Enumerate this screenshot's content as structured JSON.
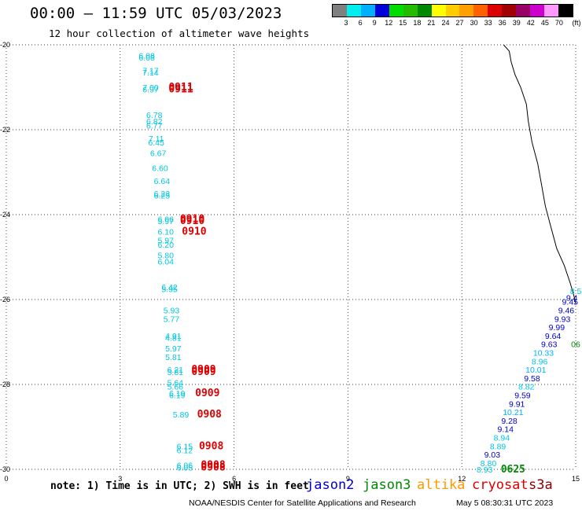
{
  "title": "00:00 – 11:59 UTC 05/03/2023",
  "subtitle": "12 hour collection of altimeter wave heights",
  "legend": {
    "unit": "(ft)",
    "labels": [
      "3",
      "6",
      "9",
      "12",
      "15",
      "18",
      "21",
      "24",
      "27",
      "30",
      "33",
      "36",
      "39",
      "42",
      "45",
      "70"
    ],
    "colors": [
      "#808080",
      "#00eeee",
      "#00b0ff",
      "#0000dd",
      "#00dd00",
      "#22bb00",
      "#008800",
      "#ffff00",
      "#ffcc00",
      "#ffa000",
      "#ff6000",
      "#dd0000",
      "#a00000",
      "#990066",
      "#cc00cc",
      "#ff99ff",
      "#000000"
    ]
  },
  "footer": {
    "note": "note: 1) Time is in UTC; 2) SWH is in feet",
    "satellites": [
      {
        "name": "jason2",
        "color": "#0000cc"
      },
      {
        "name": "jason3",
        "color": "#008800"
      },
      {
        "name": "altika",
        "color": "#ff9900"
      },
      {
        "name": "cryosat",
        "color": "#dd0000"
      },
      {
        "name": "s3a",
        "color": "#880000"
      }
    ],
    "credit": "NOAA/NESDIS Center for Satellite Applications and Research",
    "timestamp": "May  5 08:30:31 UTC 2023"
  },
  "map": {
    "xlim": [
      0,
      15
    ],
    "ylim": [
      -30,
      -20
    ],
    "x_ticks": [
      "0",
      "3",
      "6",
      "9",
      "12",
      "15"
    ],
    "y_ticks": [
      "-20",
      "-22",
      "-24",
      "-26",
      "-28",
      "-30"
    ],
    "coastline": [
      [
        13.1,
        -20.0
      ],
      [
        13.25,
        -20.15
      ],
      [
        13.3,
        -20.4
      ],
      [
        13.4,
        -20.7
      ],
      [
        13.55,
        -21.0
      ],
      [
        13.7,
        -21.4
      ],
      [
        13.75,
        -21.8
      ],
      [
        13.85,
        -22.3
      ],
      [
        14.0,
        -22.8
      ],
      [
        14.1,
        -23.3
      ],
      [
        14.2,
        -23.8
      ],
      [
        14.35,
        -24.3
      ],
      [
        14.5,
        -24.8
      ],
      [
        14.7,
        -25.2
      ],
      [
        14.85,
        -25.6
      ],
      [
        14.95,
        -25.9
      ],
      [
        15.0,
        -26.1
      ]
    ],
    "points": [
      {
        "lon": 3.7,
        "lat": -20.25,
        "text": "6.08",
        "color": "#00c8e0"
      },
      {
        "lon": 3.7,
        "lat": -20.3,
        "text": "6.08",
        "color": "#00c8e0"
      },
      {
        "lon": 3.8,
        "lat": -20.6,
        "text": "7.17",
        "color": "#00c8e0"
      },
      {
        "lon": 3.8,
        "lat": -20.65,
        "text": "7.14",
        "color": "#00c8e0"
      },
      {
        "lon": 3.8,
        "lat": -21.0,
        "text": "7.00",
        "color": "#00c8e0"
      },
      {
        "lon": 3.8,
        "lat": -21.05,
        "text": "6.97",
        "color": "#00c8e0"
      },
      {
        "lon": 4.6,
        "lat": -21.0,
        "text": "0911",
        "color": "#dd0000"
      },
      {
        "lon": 4.6,
        "lat": -21.05,
        "text": "0911",
        "color": "#dd0000"
      },
      {
        "lon": 3.9,
        "lat": -21.65,
        "text": "6.78",
        "color": "#00c8e0"
      },
      {
        "lon": 3.9,
        "lat": -21.8,
        "text": "6.82",
        "color": "#00c8e0"
      },
      {
        "lon": 3.9,
        "lat": -21.9,
        "text": "6.77",
        "color": "#00c8e0"
      },
      {
        "lon": 3.95,
        "lat": -22.2,
        "text": "7.11",
        "color": "#00c8e0"
      },
      {
        "lon": 3.95,
        "lat": -22.3,
        "text": "6.45",
        "color": "#00c8e0"
      },
      {
        "lon": 4.0,
        "lat": -22.55,
        "text": "6.67",
        "color": "#00c8e0"
      },
      {
        "lon": 4.05,
        "lat": -22.9,
        "text": "6.60",
        "color": "#00c8e0"
      },
      {
        "lon": 4.1,
        "lat": -23.2,
        "text": "6.64",
        "color": "#00c8e0"
      },
      {
        "lon": 4.1,
        "lat": -23.5,
        "text": "6.23",
        "color": "#00c8e0"
      },
      {
        "lon": 4.1,
        "lat": -23.55,
        "text": "6.25",
        "color": "#00c8e0"
      },
      {
        "lon": 4.2,
        "lat": -24.1,
        "text": "6.06",
        "color": "#00c8e0"
      },
      {
        "lon": 4.2,
        "lat": -24.15,
        "text": "5.97",
        "color": "#00c8e0"
      },
      {
        "lon": 4.9,
        "lat": -24.1,
        "text": "0910",
        "color": "#dd0000"
      },
      {
        "lon": 4.9,
        "lat": -24.15,
        "text": "0910",
        "color": "#dd0000"
      },
      {
        "lon": 4.2,
        "lat": -24.4,
        "text": "6.10",
        "color": "#00c8e0"
      },
      {
        "lon": 4.95,
        "lat": -24.4,
        "text": "0910",
        "color": "#dd0000"
      },
      {
        "lon": 4.2,
        "lat": -24.6,
        "text": "5.97",
        "color": "#00c8e0"
      },
      {
        "lon": 4.2,
        "lat": -24.7,
        "text": "6.20",
        "color": "#00c8e0"
      },
      {
        "lon": 4.2,
        "lat": -24.95,
        "text": "5.80",
        "color": "#00c8e0"
      },
      {
        "lon": 4.2,
        "lat": -25.1,
        "text": "6.04",
        "color": "#00c8e0"
      },
      {
        "lon": 4.3,
        "lat": -25.7,
        "text": "6.42",
        "color": "#00c8e0"
      },
      {
        "lon": 4.3,
        "lat": -25.75,
        "text": "5.95",
        "color": "#00c8e0"
      },
      {
        "lon": 4.35,
        "lat": -26.25,
        "text": "5.93",
        "color": "#00c8e0"
      },
      {
        "lon": 4.35,
        "lat": -26.45,
        "text": "5.77",
        "color": "#00c8e0"
      },
      {
        "lon": 4.4,
        "lat": -26.85,
        "text": "4.91",
        "color": "#00c8e0"
      },
      {
        "lon": 4.4,
        "lat": -26.9,
        "text": "4.81",
        "color": "#00c8e0"
      },
      {
        "lon": 4.4,
        "lat": -27.15,
        "text": "5.97",
        "color": "#00c8e0"
      },
      {
        "lon": 4.4,
        "lat": -27.35,
        "text": "5.81",
        "color": "#00c8e0"
      },
      {
        "lon": 4.45,
        "lat": -27.65,
        "text": "6.21",
        "color": "#00c8e0"
      },
      {
        "lon": 4.45,
        "lat": -27.7,
        "text": "5.81",
        "color": "#00c8e0"
      },
      {
        "lon": 5.2,
        "lat": -27.65,
        "text": "0909",
        "color": "#dd0000"
      },
      {
        "lon": 5.2,
        "lat": -27.7,
        "text": "0909",
        "color": "#dd0000"
      },
      {
        "lon": 4.45,
        "lat": -27.95,
        "text": "5.64",
        "color": "#00c8e0"
      },
      {
        "lon": 4.45,
        "lat": -28.05,
        "text": "5.66",
        "color": "#00c8e0"
      },
      {
        "lon": 4.5,
        "lat": -28.2,
        "text": "6.19",
        "color": "#00c8e0"
      },
      {
        "lon": 4.5,
        "lat": -28.25,
        "text": "6.19",
        "color": "#00c8e0"
      },
      {
        "lon": 5.3,
        "lat": -28.2,
        "text": "0909",
        "color": "#dd0000"
      },
      {
        "lon": 4.6,
        "lat": -28.7,
        "text": "5.89",
        "color": "#00c8e0"
      },
      {
        "lon": 5.35,
        "lat": -28.7,
        "text": "0908",
        "color": "#dd0000"
      },
      {
        "lon": 4.7,
        "lat": -29.45,
        "text": "6.15",
        "color": "#00c8e0"
      },
      {
        "lon": 4.7,
        "lat": -29.55,
        "text": "6.12",
        "color": "#00c8e0"
      },
      {
        "lon": 5.4,
        "lat": -29.45,
        "text": "0908",
        "color": "#dd0000"
      },
      {
        "lon": 4.7,
        "lat": -29.9,
        "text": "6.06",
        "color": "#00c8e0"
      },
      {
        "lon": 4.7,
        "lat": -29.95,
        "text": "6.05",
        "color": "#00c8e0"
      },
      {
        "lon": 5.45,
        "lat": -29.9,
        "text": "0908",
        "color": "#dd0000"
      },
      {
        "lon": 5.45,
        "lat": -29.95,
        "text": "0908",
        "color": "#dd0000"
      },
      {
        "lon": 15.0,
        "lat": -25.8,
        "text": "8.5",
        "color": "#00c8e0"
      },
      {
        "lon": 14.9,
        "lat": -25.95,
        "text": "9.4",
        "color": "#0000cc"
      },
      {
        "lon": 14.85,
        "lat": -26.05,
        "text": "9.45",
        "color": "#0000cc"
      },
      {
        "lon": 14.75,
        "lat": -26.25,
        "text": "9.46",
        "color": "#0000cc"
      },
      {
        "lon": 14.65,
        "lat": -26.45,
        "text": "9.93",
        "color": "#0000cc"
      },
      {
        "lon": 14.5,
        "lat": -26.65,
        "text": "9.99",
        "color": "#0000cc"
      },
      {
        "lon": 14.4,
        "lat": -26.85,
        "text": "9.64",
        "color": "#0000cc"
      },
      {
        "lon": 14.3,
        "lat": -27.05,
        "text": "9.63",
        "color": "#0000cc"
      },
      {
        "lon": 15.0,
        "lat": -27.05,
        "text": "06",
        "color": "#008800"
      },
      {
        "lon": 14.15,
        "lat": -27.25,
        "text": "10.33",
        "color": "#00b0ff"
      },
      {
        "lon": 14.05,
        "lat": -27.45,
        "text": "8.96",
        "color": "#00c8e0"
      },
      {
        "lon": 13.95,
        "lat": -27.65,
        "text": "10.01",
        "color": "#00b0ff"
      },
      {
        "lon": 13.85,
        "lat": -27.85,
        "text": "9.58",
        "color": "#0000cc"
      },
      {
        "lon": 13.7,
        "lat": -28.05,
        "text": "8.82",
        "color": "#00c8e0"
      },
      {
        "lon": 13.6,
        "lat": -28.25,
        "text": "9.59",
        "color": "#0000cc"
      },
      {
        "lon": 13.45,
        "lat": -28.45,
        "text": "9.91",
        "color": "#0000cc"
      },
      {
        "lon": 13.35,
        "lat": -28.65,
        "text": "10.21",
        "color": "#00b0ff"
      },
      {
        "lon": 13.25,
        "lat": -28.85,
        "text": "9.28",
        "color": "#0000cc"
      },
      {
        "lon": 13.15,
        "lat": -29.05,
        "text": "9.14",
        "color": "#0000cc"
      },
      {
        "lon": 13.05,
        "lat": -29.25,
        "text": "8.94",
        "color": "#00c8e0"
      },
      {
        "lon": 12.95,
        "lat": -29.45,
        "text": "8.89",
        "color": "#00c8e0"
      },
      {
        "lon": 12.8,
        "lat": -29.65,
        "text": "9.03",
        "color": "#0000cc"
      },
      {
        "lon": 12.7,
        "lat": -29.85,
        "text": "8.80",
        "color": "#00c8e0"
      },
      {
        "lon": 12.6,
        "lat": -30.0,
        "text": "8.93",
        "color": "#00c8e0"
      },
      {
        "lon": 13.35,
        "lat": -30.0,
        "text": "0625",
        "color": "#008800"
      }
    ]
  }
}
